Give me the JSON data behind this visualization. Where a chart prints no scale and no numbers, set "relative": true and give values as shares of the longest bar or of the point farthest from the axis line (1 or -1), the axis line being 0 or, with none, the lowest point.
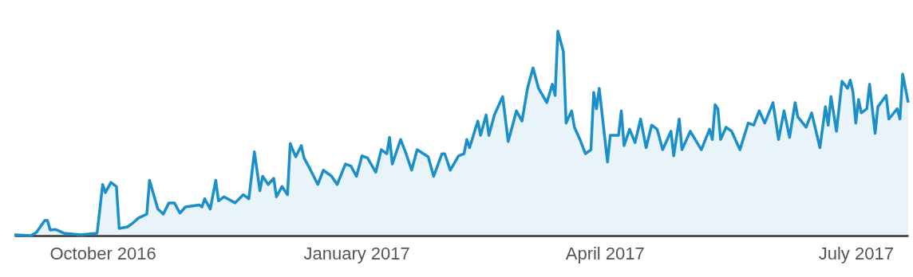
{
  "chart_data": {
    "type": "area",
    "relative": true,
    "xlim": [
      "2016-08-30",
      "2017-07-20"
    ],
    "xticks": [
      {
        "value": "2016-10-01",
        "label": "October 2016"
      },
      {
        "value": "2017-01-01",
        "label": "January 2017"
      },
      {
        "value": "2017-04-01",
        "label": "April 2017"
      },
      {
        "value": "2017-07-01",
        "label": "July 2017"
      }
    ],
    "x": [
      "2016-08-30",
      "2016-09-05",
      "2016-09-07",
      "2016-09-10",
      "2016-09-11",
      "2016-09-12",
      "2016-09-14",
      "2016-09-17",
      "2016-09-23",
      "2016-09-29",
      "2016-10-01",
      "2016-10-02",
      "2016-10-04",
      "2016-10-06",
      "2016-10-07",
      "2016-10-10",
      "2016-10-12",
      "2016-10-14",
      "2016-10-17",
      "2016-10-18",
      "2016-10-21",
      "2016-10-23",
      "2016-10-25",
      "2016-10-27",
      "2016-10-29",
      "2016-10-31",
      "2016-11-05",
      "2016-11-06",
      "2016-11-07",
      "2016-11-09",
      "2016-11-11",
      "2016-11-12",
      "2016-11-14",
      "2016-11-18",
      "2016-11-21",
      "2016-11-23",
      "2016-11-25",
      "2016-11-27",
      "2016-11-28",
      "2016-11-30",
      "2016-12-02",
      "2016-12-03",
      "2016-12-05",
      "2016-12-07",
      "2016-12-08",
      "2016-12-10",
      "2016-12-12",
      "2016-12-13",
      "2016-12-15",
      "2016-12-18",
      "2016-12-20",
      "2016-12-23",
      "2016-12-25",
      "2016-12-28",
      "2016-12-30",
      "2017-01-01",
      "2017-01-03",
      "2017-01-05",
      "2017-01-08",
      "2017-01-10",
      "2017-01-12",
      "2017-01-13",
      "2017-01-14",
      "2017-01-17",
      "2017-01-19",
      "2017-01-21",
      "2017-01-23",
      "2017-01-27",
      "2017-01-29",
      "2017-02-01",
      "2017-02-02",
      "2017-02-04",
      "2017-02-07",
      "2017-02-09",
      "2017-02-10",
      "2017-02-11",
      "2017-02-14",
      "2017-02-15",
      "2017-02-17",
      "2017-02-18",
      "2017-02-20",
      "2017-02-23",
      "2017-02-25",
      "2017-02-28",
      "2017-03-02",
      "2017-03-04",
      "2017-03-06",
      "2017-03-08",
      "2017-03-11",
      "2017-03-13",
      "2017-03-14",
      "2017-03-15",
      "2017-03-17",
      "2017-03-18",
      "2017-03-20",
      "2017-03-21",
      "2017-03-23",
      "2017-03-25",
      "2017-03-27",
      "2017-03-28",
      "2017-03-29",
      "2017-03-30",
      "2017-04-02",
      "2017-04-03",
      "2017-04-06",
      "2017-04-07",
      "2017-04-08",
      "2017-04-10",
      "2017-04-12",
      "2017-04-14",
      "2017-04-16",
      "2017-04-18",
      "2017-04-20",
      "2017-04-22",
      "2017-04-25",
      "2017-04-26",
      "2017-04-28",
      "2017-04-29",
      "2017-05-02",
      "2017-05-06",
      "2017-05-09",
      "2017-05-10",
      "2017-05-11",
      "2017-05-12",
      "2017-05-13",
      "2017-05-15",
      "2017-05-17",
      "2017-05-20",
      "2017-05-23",
      "2017-05-25",
      "2017-05-27",
      "2017-05-29",
      "2017-06-01",
      "2017-06-03",
      "2017-06-05",
      "2017-06-07",
      "2017-06-09",
      "2017-06-10",
      "2017-06-13",
      "2017-06-15",
      "2017-06-18",
      "2017-06-20",
      "2017-06-21",
      "2017-06-22",
      "2017-06-24",
      "2017-06-26",
      "2017-06-28",
      "2017-06-29",
      "2017-06-30",
      "2017-07-01",
      "2017-07-02",
      "2017-07-03",
      "2017-07-05",
      "2017-07-06",
      "2017-07-08",
      "2017-07-09",
      "2017-07-12",
      "2017-07-13",
      "2017-07-16",
      "2017-07-17",
      "2017-07-18",
      "2017-07-20"
    ],
    "series": [
      {
        "color": "#1a8fc9",
        "values": [
          0.004,
          0,
          0.016,
          0.074,
          0.074,
          0.027,
          0.03,
          0.012,
          0.004,
          0.012,
          0.25,
          0.21,
          0.26,
          0.24,
          0.035,
          0.043,
          0.062,
          0.086,
          0.105,
          0.27,
          0.13,
          0.105,
          0.16,
          0.16,
          0.11,
          0.14,
          0.15,
          0.14,
          0.18,
          0.13,
          0.27,
          0.17,
          0.19,
          0.16,
          0.2,
          0.18,
          0.41,
          0.22,
          0.29,
          0.25,
          0.28,
          0.19,
          0.24,
          0.2,
          0.45,
          0.385,
          0.44,
          0.38,
          0.33,
          0.25,
          0.32,
          0.29,
          0.25,
          0.35,
          0.34,
          0.29,
          0.39,
          0.38,
          0.31,
          0.42,
          0.4,
          0.48,
          0.35,
          0.47,
          0.4,
          0.32,
          0.42,
          0.385,
          0.29,
          0.4,
          0.4,
          0.32,
          0.39,
          0.4,
          0.47,
          0.43,
          0.56,
          0.49,
          0.59,
          0.49,
          0.59,
          0.68,
          0.46,
          0.61,
          0.56,
          0.72,
          0.82,
          0.72,
          0.65,
          0.74,
          0.685,
          1,
          0.9,
          0.55,
          0.61,
          0.53,
          0.47,
          0.4,
          0.42,
          0.7,
          0.62,
          0.72,
          0.36,
          0.49,
          0.49,
          0.61,
          0.44,
          0.52,
          0.455,
          0.57,
          0.43,
          0.54,
          0.52,
          0.42,
          0.51,
          0.39,
          0.57,
          0.42,
          0.51,
          0.42,
          0.52,
          0.47,
          0.64,
          0.62,
          0.47,
          0.53,
          0.51,
          0.42,
          0.55,
          0.54,
          0.61,
          0.55,
          0.65,
          0.47,
          0.61,
          0.48,
          0.65,
          0.58,
          0.53,
          0.6,
          0.43,
          0.63,
          0.54,
          0.68,
          0.51,
          0.755,
          0.72,
          0.76,
          0.7,
          0.55,
          0.665,
          0.6,
          0.62,
          0.74,
          0.5,
          0.63,
          0.685,
          0.57,
          0.62,
          0.57,
          0.79,
          0.65
        ]
      }
    ]
  }
}
